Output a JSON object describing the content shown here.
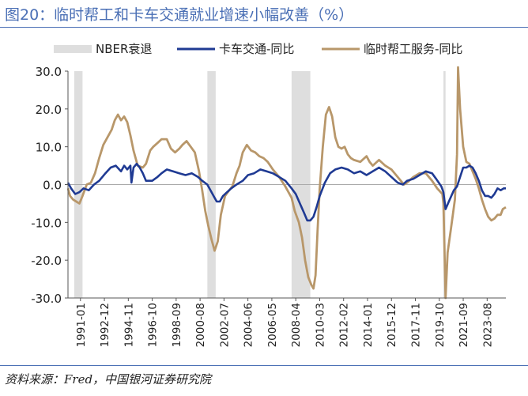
{
  "header": {
    "title": "图20：临时帮工和卡车交通就业增速小幅改善（%）"
  },
  "footer": {
    "source": "资料来源：Fred，中国银河证券研究院"
  },
  "colors": {
    "truck": "#1f3a93",
    "temp": "#b8976a",
    "recession": "#dedede",
    "zero_line": "#aaaaaa",
    "axis": "#555555",
    "title": "#4a6fb5"
  },
  "chart_data": {
    "type": "line",
    "title": "",
    "xlabel": "",
    "ylabel": "",
    "x_start": "1990-01",
    "x_end": "2025-02",
    "ylim": [
      -30,
      30
    ],
    "yticks": [
      30,
      20,
      10,
      0,
      -10,
      -20,
      -30
    ],
    "ytick_labels": [
      "30.0",
      "20.0",
      "10.0",
      "0.0",
      "-10.0",
      "-20.0",
      "-30.0"
    ],
    "xticks": [
      "1991-01",
      "1992-12",
      "1994-11",
      "1996-10",
      "1998-09",
      "2000-08",
      "2002-07",
      "2004-06",
      "2006-05",
      "2008-04",
      "2010-03",
      "2012-02",
      "2014-01",
      "2015-12",
      "2017-11",
      "2019-10",
      "2021-09",
      "2023-08"
    ],
    "grid": false,
    "legend_position": "top",
    "legend": {
      "recession": "NBER衰退",
      "truck": "卡车交通-同比",
      "temp": "临时帮工服务-同比"
    },
    "recessions": [
      [
        "1990-07",
        "1991-03"
      ],
      [
        "2001-03",
        "2001-11"
      ],
      [
        "2007-12",
        "2009-06"
      ],
      [
        "2020-02",
        "2020-04"
      ]
    ],
    "series": [
      {
        "name": "卡车交通-同比",
        "key": "truck",
        "points": [
          [
            "1990-01",
            0.5
          ],
          [
            "1990-04",
            -1.0
          ],
          [
            "1990-08",
            -2.5
          ],
          [
            "1990-12",
            -2.0
          ],
          [
            "1991-04",
            -1.0
          ],
          [
            "1991-09",
            -1.5
          ],
          [
            "1992-02",
            0.0
          ],
          [
            "1992-07",
            1.0
          ],
          [
            "1993-01",
            3.0
          ],
          [
            "1993-06",
            4.5
          ],
          [
            "1993-11",
            5.0
          ],
          [
            "1994-04",
            3.5
          ],
          [
            "1994-07",
            5.0
          ],
          [
            "1994-10",
            4.0
          ],
          [
            "1995-01",
            5.0
          ],
          [
            "1995-02",
            0.5
          ],
          [
            "1995-04",
            4.5
          ],
          [
            "1995-07",
            5.5
          ],
          [
            "1995-10",
            4.5
          ],
          [
            "1996-01",
            3.0
          ],
          [
            "1996-04",
            1.0
          ],
          [
            "1996-10",
            1.0
          ],
          [
            "1997-03",
            2.0
          ],
          [
            "1997-07",
            3.0
          ],
          [
            "1997-12",
            4.0
          ],
          [
            "1998-06",
            3.5
          ],
          [
            "1998-12",
            3.0
          ],
          [
            "1999-06",
            2.5
          ],
          [
            "1999-12",
            3.0
          ],
          [
            "2000-06",
            2.0
          ],
          [
            "2000-10",
            1.0
          ],
          [
            "2001-03",
            0.0
          ],
          [
            "2001-06",
            -1.5
          ],
          [
            "2001-09",
            -3.0
          ],
          [
            "2001-12",
            -4.5
          ],
          [
            "2002-03",
            -4.5
          ],
          [
            "2002-06",
            -3.0
          ],
          [
            "2002-10",
            -2.0
          ],
          [
            "2003-02",
            -1.0
          ],
          [
            "2003-07",
            0.0
          ],
          [
            "2004-01",
            1.0
          ],
          [
            "2004-06",
            2.5
          ],
          [
            "2004-12",
            3.0
          ],
          [
            "2005-06",
            4.0
          ],
          [
            "2005-12",
            3.5
          ],
          [
            "2006-06",
            3.0
          ],
          [
            "2006-12",
            2.0
          ],
          [
            "2007-06",
            1.0
          ],
          [
            "2007-12",
            -1.0
          ],
          [
            "2008-04",
            -2.5
          ],
          [
            "2008-08",
            -5.0
          ],
          [
            "2008-12",
            -7.5
          ],
          [
            "2009-03",
            -9.5
          ],
          [
            "2009-06",
            -9.5
          ],
          [
            "2009-09",
            -8.5
          ],
          [
            "2009-12",
            -6.0
          ],
          [
            "2010-03",
            -3.0
          ],
          [
            "2010-08",
            0.5
          ],
          [
            "2011-01",
            3.0
          ],
          [
            "2011-06",
            4.0
          ],
          [
            "2011-12",
            4.5
          ],
          [
            "2012-06",
            4.0
          ],
          [
            "2012-12",
            3.0
          ],
          [
            "2013-06",
            3.5
          ],
          [
            "2013-12",
            2.5
          ],
          [
            "2014-06",
            3.5
          ],
          [
            "2014-12",
            4.5
          ],
          [
            "2015-06",
            3.5
          ],
          [
            "2015-12",
            2.0
          ],
          [
            "2016-06",
            0.5
          ],
          [
            "2016-11",
            0.0
          ],
          [
            "2017-03",
            1.0
          ],
          [
            "2017-09",
            1.5
          ],
          [
            "2018-03",
            2.5
          ],
          [
            "2018-09",
            3.5
          ],
          [
            "2019-03",
            3.0
          ],
          [
            "2019-07",
            1.5
          ],
          [
            "2019-12",
            -0.5
          ],
          [
            "2020-02",
            -2.0
          ],
          [
            "2020-04",
            -6.5
          ],
          [
            "2020-08",
            -4.0
          ],
          [
            "2020-12",
            -1.5
          ],
          [
            "2021-03",
            -0.5
          ],
          [
            "2021-06",
            2.0
          ],
          [
            "2021-09",
            4.5
          ],
          [
            "2021-12",
            4.5
          ],
          [
            "2022-03",
            5.0
          ],
          [
            "2022-06",
            4.5
          ],
          [
            "2022-09",
            3.0
          ],
          [
            "2022-12",
            1.0
          ],
          [
            "2023-03",
            -1.5
          ],
          [
            "2023-06",
            -3.0
          ],
          [
            "2023-09",
            -3.0
          ],
          [
            "2023-12",
            -3.5
          ],
          [
            "2024-03",
            -2.5
          ],
          [
            "2024-06",
            -1.0
          ],
          [
            "2024-09",
            -1.5
          ],
          [
            "2024-12",
            -1.0
          ],
          [
            "2025-02",
            -1.0
          ]
        ]
      },
      {
        "name": "临时帮工服务-同比",
        "key": "temp",
        "points": [
          [
            "1990-01",
            -1.0
          ],
          [
            "1990-03",
            -3.0
          ],
          [
            "1990-06",
            -4.0
          ],
          [
            "1990-09",
            -4.5
          ],
          [
            "1990-12",
            -5.0
          ],
          [
            "1991-03",
            -3.0
          ],
          [
            "1991-07",
            0.0
          ],
          [
            "1991-11",
            0.5
          ],
          [
            "1992-03",
            3.0
          ],
          [
            "1992-07",
            7.0
          ],
          [
            "1992-11",
            10.5
          ],
          [
            "1993-03",
            12.5
          ],
          [
            "1993-07",
            14.5
          ],
          [
            "1993-10",
            17.0
          ],
          [
            "1994-01",
            18.5
          ],
          [
            "1994-04",
            17.0
          ],
          [
            "1994-07",
            18.0
          ],
          [
            "1994-10",
            16.5
          ],
          [
            "1995-01",
            13.0
          ],
          [
            "1995-04",
            9.0
          ],
          [
            "1995-08",
            5.0
          ],
          [
            "1996-01",
            4.5
          ],
          [
            "1996-04",
            5.5
          ],
          [
            "1996-08",
            9.0
          ],
          [
            "1996-11",
            10.0
          ],
          [
            "1997-03",
            11.0
          ],
          [
            "1997-07",
            12.0
          ],
          [
            "1997-12",
            12.0
          ],
          [
            "1998-04",
            9.5
          ],
          [
            "1998-08",
            8.5
          ],
          [
            "1998-12",
            9.5
          ],
          [
            "1999-03",
            10.5
          ],
          [
            "1999-07",
            11.5
          ],
          [
            "1999-11",
            10.0
          ],
          [
            "2000-03",
            8.5
          ],
          [
            "2000-07",
            3.5
          ],
          [
            "2000-10",
            -1.5
          ],
          [
            "2001-01",
            -7.0
          ],
          [
            "2001-04",
            -11.0
          ],
          [
            "2001-07",
            -14.5
          ],
          [
            "2001-10",
            -17.5
          ],
          [
            "2002-01",
            -15.0
          ],
          [
            "2002-04",
            -8.0
          ],
          [
            "2002-08",
            -3.0
          ],
          [
            "2002-12",
            -1.5
          ],
          [
            "2003-03",
            -0.5
          ],
          [
            "2003-07",
            3.0
          ],
          [
            "2003-10",
            5.0
          ],
          [
            "2004-01",
            8.5
          ],
          [
            "2004-05",
            10.5
          ],
          [
            "2004-09",
            9.0
          ],
          [
            "2005-01",
            8.5
          ],
          [
            "2005-05",
            7.5
          ],
          [
            "2005-09",
            7.0
          ],
          [
            "2006-01",
            6.0
          ],
          [
            "2006-06",
            4.0
          ],
          [
            "2006-12",
            2.0
          ],
          [
            "2007-06",
            -0.5
          ],
          [
            "2007-12",
            -3.5
          ],
          [
            "2008-03",
            -7.0
          ],
          [
            "2008-07",
            -10.0
          ],
          [
            "2008-10",
            -14.0
          ],
          [
            "2009-01",
            -20.0
          ],
          [
            "2009-04",
            -24.5
          ],
          [
            "2009-07",
            -26.5
          ],
          [
            "2009-09",
            -27.5
          ],
          [
            "2009-11",
            -24.0
          ],
          [
            "2010-01",
            -12.0
          ],
          [
            "2010-03",
            -1.0
          ],
          [
            "2010-06",
            10.0
          ],
          [
            "2010-09",
            18.5
          ],
          [
            "2010-12",
            20.5
          ],
          [
            "2011-03",
            18.0
          ],
          [
            "2011-06",
            12.5
          ],
          [
            "2011-09",
            10.0
          ],
          [
            "2011-12",
            9.5
          ],
          [
            "2012-03",
            10.0
          ],
          [
            "2012-06",
            8.0
          ],
          [
            "2012-09",
            7.0
          ],
          [
            "2012-12",
            6.5
          ],
          [
            "2013-06",
            6.0
          ],
          [
            "2013-12",
            7.5
          ],
          [
            "2014-03",
            6.0
          ],
          [
            "2014-06",
            5.0
          ],
          [
            "2014-12",
            6.5
          ],
          [
            "2015-06",
            5.0
          ],
          [
            "2015-12",
            4.0
          ],
          [
            "2016-06",
            2.0
          ],
          [
            "2016-12",
            0.0
          ],
          [
            "2017-03",
            0.5
          ],
          [
            "2017-09",
            2.0
          ],
          [
            "2018-03",
            3.0
          ],
          [
            "2018-09",
            3.0
          ],
          [
            "2019-03",
            1.0
          ],
          [
            "2019-08",
            -1.0
          ],
          [
            "2020-01",
            -2.5
          ],
          [
            "2020-02",
            -5.0
          ],
          [
            "2020-04",
            -30.0
          ],
          [
            "2020-06",
            -18.0
          ],
          [
            "2020-09",
            -12.0
          ],
          [
            "2020-11",
            -8.0
          ],
          [
            "2021-01",
            -4.0
          ],
          [
            "2021-03",
            8.0
          ],
          [
            "2021-04",
            31.0
          ],
          [
            "2021-06",
            20.0
          ],
          [
            "2021-09",
            10.0
          ],
          [
            "2021-12",
            6.0
          ],
          [
            "2022-03",
            5.5
          ],
          [
            "2022-06",
            3.5
          ],
          [
            "2022-09",
            1.5
          ],
          [
            "2022-12",
            -1.0
          ],
          [
            "2023-03",
            -4.0
          ],
          [
            "2023-06",
            -6.5
          ],
          [
            "2023-09",
            -8.5
          ],
          [
            "2023-12",
            -9.5
          ],
          [
            "2024-03",
            -9.0
          ],
          [
            "2024-06",
            -8.0
          ],
          [
            "2024-09",
            -8.0
          ],
          [
            "2024-11",
            -6.5
          ],
          [
            "2025-02",
            -6.0
          ]
        ]
      }
    ]
  }
}
